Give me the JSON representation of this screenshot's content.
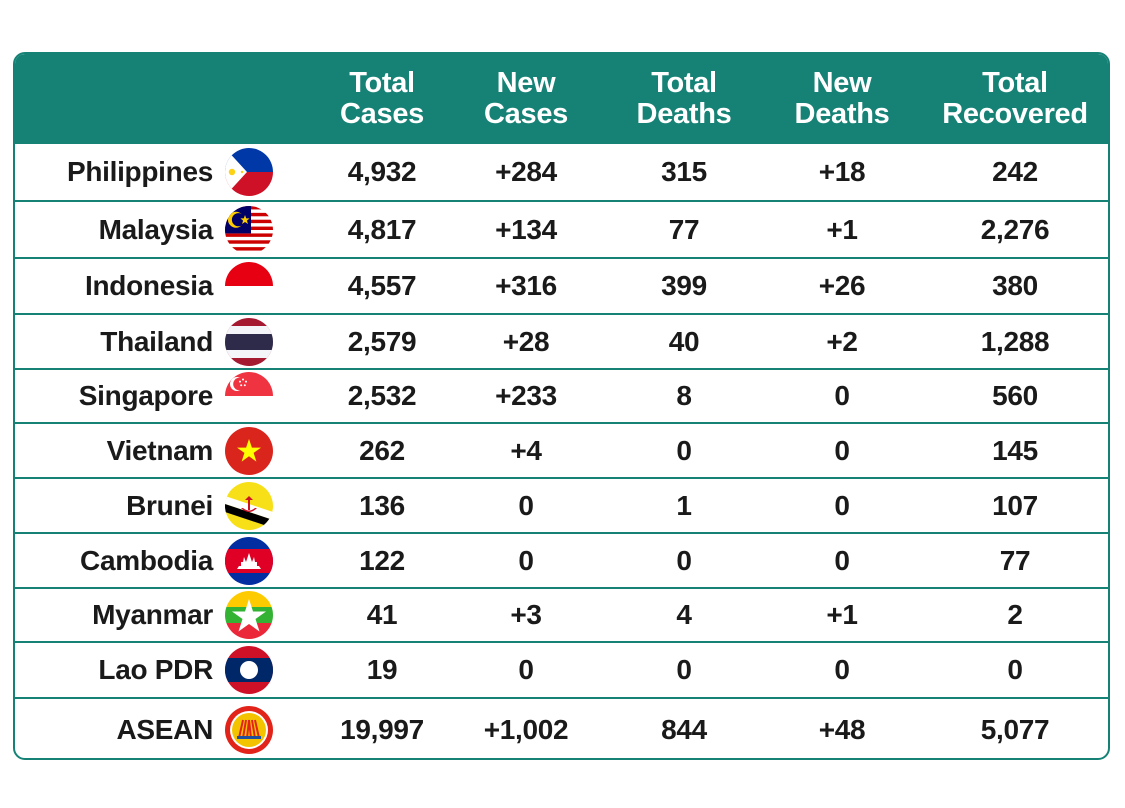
{
  "headers": {
    "total_cases": [
      "Total",
      "Cases"
    ],
    "new_cases": [
      "New",
      "Cases"
    ],
    "total_deaths": [
      "Total",
      "Deaths"
    ],
    "new_deaths": [
      "New",
      "Deaths"
    ],
    "total_recovered": [
      "Total",
      "Recovered"
    ]
  },
  "colors": {
    "header": "#168276",
    "text": "#1a1a1a"
  },
  "rows": [
    {
      "country": "Philippines",
      "flag": "philippines-flag-icon",
      "total_cases": "4,932",
      "new_cases": "+284",
      "total_deaths": "315",
      "new_deaths": "+18",
      "total_recovered": "242"
    },
    {
      "country": "Malaysia",
      "flag": "malaysia-flag-icon",
      "total_cases": "4,817",
      "new_cases": "+134",
      "total_deaths": "77",
      "new_deaths": "+1",
      "total_recovered": "2,276"
    },
    {
      "country": "Indonesia",
      "flag": "indonesia-flag-icon",
      "total_cases": "4,557",
      "new_cases": "+316",
      "total_deaths": "399",
      "new_deaths": "+26",
      "total_recovered": "380"
    },
    {
      "country": "Thailand",
      "flag": "thailand-flag-icon",
      "total_cases": "2,579",
      "new_cases": "+28",
      "total_deaths": "40",
      "new_deaths": "+2",
      "total_recovered": "1,288"
    },
    {
      "country": "Singapore",
      "flag": "singapore-flag-icon",
      "total_cases": "2,532",
      "new_cases": "+233",
      "total_deaths": "8",
      "new_deaths": "0",
      "total_recovered": "560"
    },
    {
      "country": "Vietnam",
      "flag": "vietnam-flag-icon",
      "total_cases": "262",
      "new_cases": "+4",
      "total_deaths": "0",
      "new_deaths": "0",
      "total_recovered": "145"
    },
    {
      "country": "Brunei",
      "flag": "brunei-flag-icon",
      "total_cases": "136",
      "new_cases": "0",
      "total_deaths": "1",
      "new_deaths": "0",
      "total_recovered": "107"
    },
    {
      "country": "Cambodia",
      "flag": "cambodia-flag-icon",
      "total_cases": "122",
      "new_cases": "0",
      "total_deaths": "0",
      "new_deaths": "0",
      "total_recovered": "77"
    },
    {
      "country": "Myanmar",
      "flag": "myanmar-flag-icon",
      "total_cases": "41",
      "new_cases": "+3",
      "total_deaths": "4",
      "new_deaths": "+1",
      "total_recovered": "2"
    },
    {
      "country": "Lao PDR",
      "flag": "laos-flag-icon",
      "total_cases": "19",
      "new_cases": "0",
      "total_deaths": "0",
      "new_deaths": "0",
      "total_recovered": "0"
    },
    {
      "country": "ASEAN",
      "flag": "asean-emblem-icon",
      "total_cases": "19,997",
      "new_cases": "+1,002",
      "total_deaths": "844",
      "new_deaths": "+48",
      "total_recovered": "5,077"
    }
  ]
}
